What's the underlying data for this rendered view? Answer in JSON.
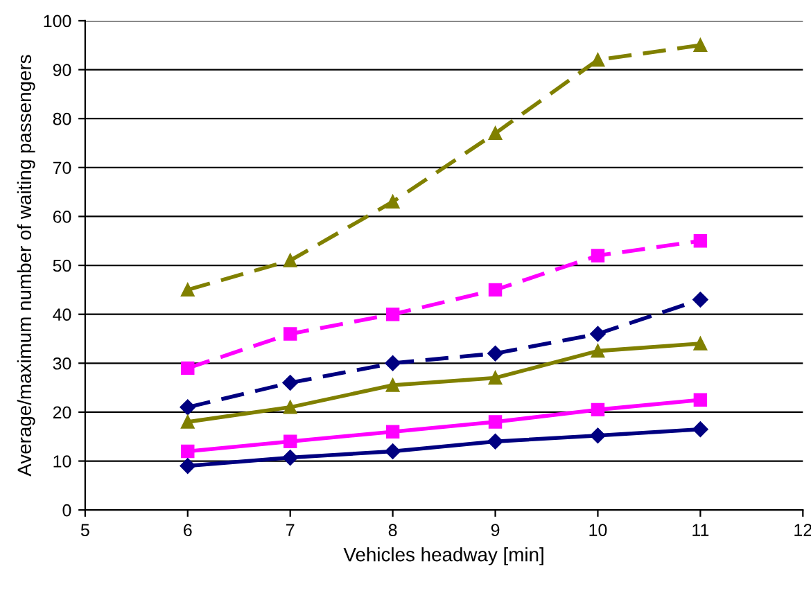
{
  "chart_data": {
    "type": "line",
    "xlabel": "Vehicles headway [min]",
    "ylabel": "Average/maximum number of waiting passengers",
    "xlim": [
      5,
      12
    ],
    "xticks": [
      5,
      6,
      7,
      8,
      9,
      10,
      11,
      12
    ],
    "ylim": [
      0,
      100
    ],
    "yticks": [
      0,
      10,
      20,
      30,
      40,
      50,
      60,
      70,
      80,
      90,
      100
    ],
    "grid": "y",
    "x": [
      6,
      7,
      8,
      9,
      10,
      11
    ],
    "series": [
      {
        "color": "#808000",
        "values": [
          45,
          51,
          63,
          77,
          92,
          95
        ],
        "marker": "triangle",
        "line_style": "dashed"
      },
      {
        "color": "#ff00ff",
        "values": [
          29,
          36,
          40,
          45,
          52,
          55
        ],
        "marker": "square",
        "line_style": "dashed"
      },
      {
        "color": "#000080",
        "values": [
          21,
          26,
          30,
          32,
          36,
          43
        ],
        "marker": "diamond",
        "line_style": "dashed"
      },
      {
        "color": "#808000",
        "values": [
          18,
          21,
          25.5,
          27,
          32.5,
          34
        ],
        "marker": "triangle",
        "line_style": "solid"
      },
      {
        "color": "#ff00ff",
        "values": [
          12,
          14,
          16,
          18,
          20.5,
          22.5
        ],
        "marker": "square",
        "line_style": "solid"
      },
      {
        "color": "#000080",
        "values": [
          9,
          10.7,
          12,
          14,
          15.2,
          16.5
        ],
        "marker": "diamond",
        "line_style": "solid"
      }
    ]
  }
}
